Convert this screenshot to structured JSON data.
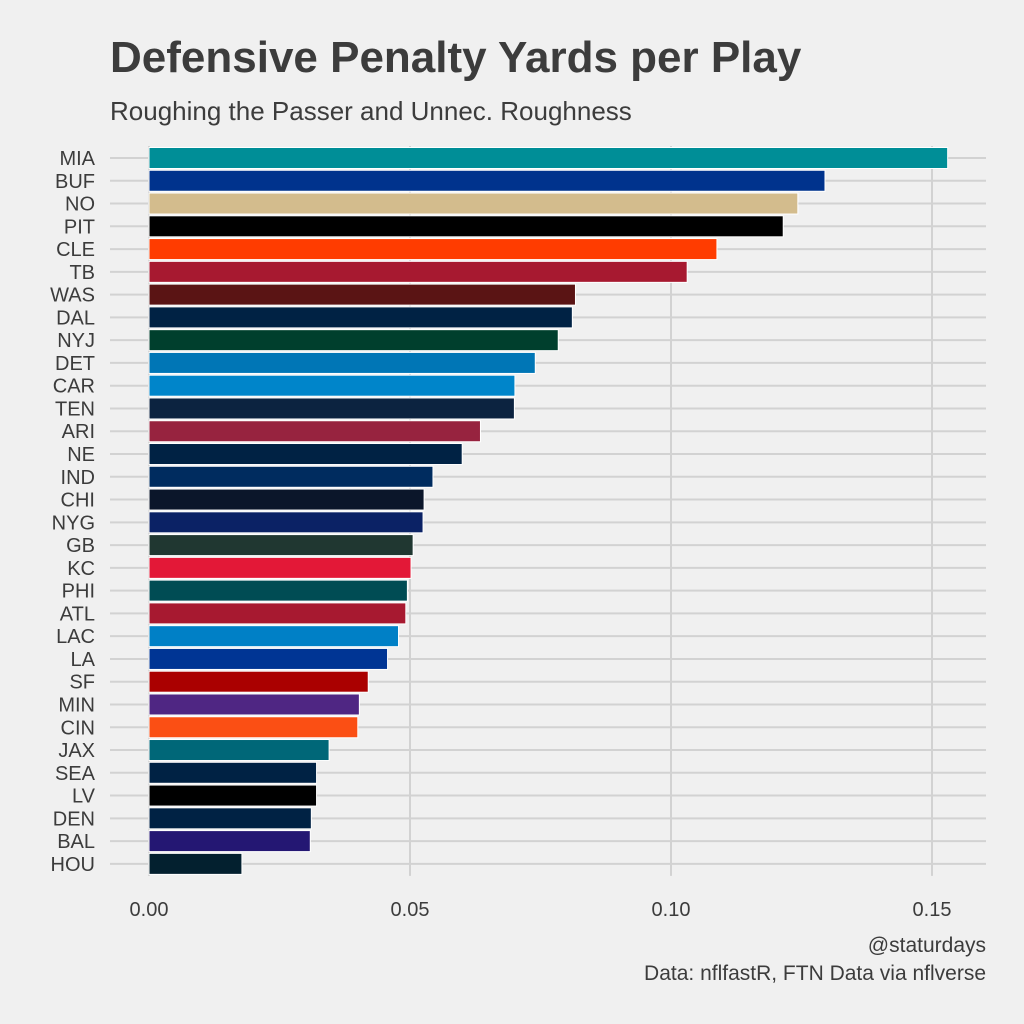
{
  "chart_data": {
    "type": "bar",
    "orientation": "horizontal",
    "title": "Defensive Penalty Yards per Play",
    "subtitle": "Roughing the Passer and Unnec. Roughness",
    "caption": [
      "@staturdays",
      "Data: nflfastR, FTN Data via nflverse"
    ],
    "xlabel": "",
    "ylabel": "",
    "xlim": [
      0,
      0.161
    ],
    "xticks": [
      "0.00",
      "0.05",
      "0.10",
      "0.15"
    ],
    "xtick_values": [
      0,
      0.05,
      0.1,
      0.15
    ],
    "grid": true,
    "legend": "none",
    "categories": [
      "MIA",
      "BUF",
      "NO",
      "PIT",
      "CLE",
      "TB",
      "WAS",
      "DAL",
      "NYJ",
      "DET",
      "CAR",
      "TEN",
      "ARI",
      "NE",
      "IND",
      "CHI",
      "NYG",
      "GB",
      "KC",
      "PHI",
      "ATL",
      "LAC",
      "LA",
      "SF",
      "MIN",
      "CIN",
      "JAX",
      "SEA",
      "LV",
      "DEN",
      "BAL",
      "HOU"
    ],
    "values": [
      0.153,
      0.1295,
      0.1243,
      0.1215,
      0.1088,
      0.1031,
      0.0817,
      0.0811,
      0.0784,
      0.074,
      0.0701,
      0.07,
      0.0635,
      0.06,
      0.0544,
      0.0527,
      0.0525,
      0.0506,
      0.0502,
      0.0495,
      0.0492,
      0.0478,
      0.0457,
      0.042,
      0.0403,
      0.04,
      0.0345,
      0.0321,
      0.0321,
      0.0311,
      0.0309,
      0.0178
    ],
    "colors": [
      "#008E97",
      "#00338D",
      "#D3BC8D",
      "#000000",
      "#FF3C00",
      "#A71930",
      "#5A1414",
      "#002244",
      "#003F2D",
      "#0076B6",
      "#0085CA",
      "#0C2340",
      "#97233F",
      "#002244",
      "#002C5F",
      "#0B162A",
      "#0B2265",
      "#203731",
      "#E31837",
      "#004C54",
      "#A71930",
      "#0080C6",
      "#003594",
      "#AA0000",
      "#4F2683",
      "#FB4F14",
      "#006778",
      "#002244",
      "#000000",
      "#002244",
      "#241773",
      "#03202F"
    ]
  }
}
